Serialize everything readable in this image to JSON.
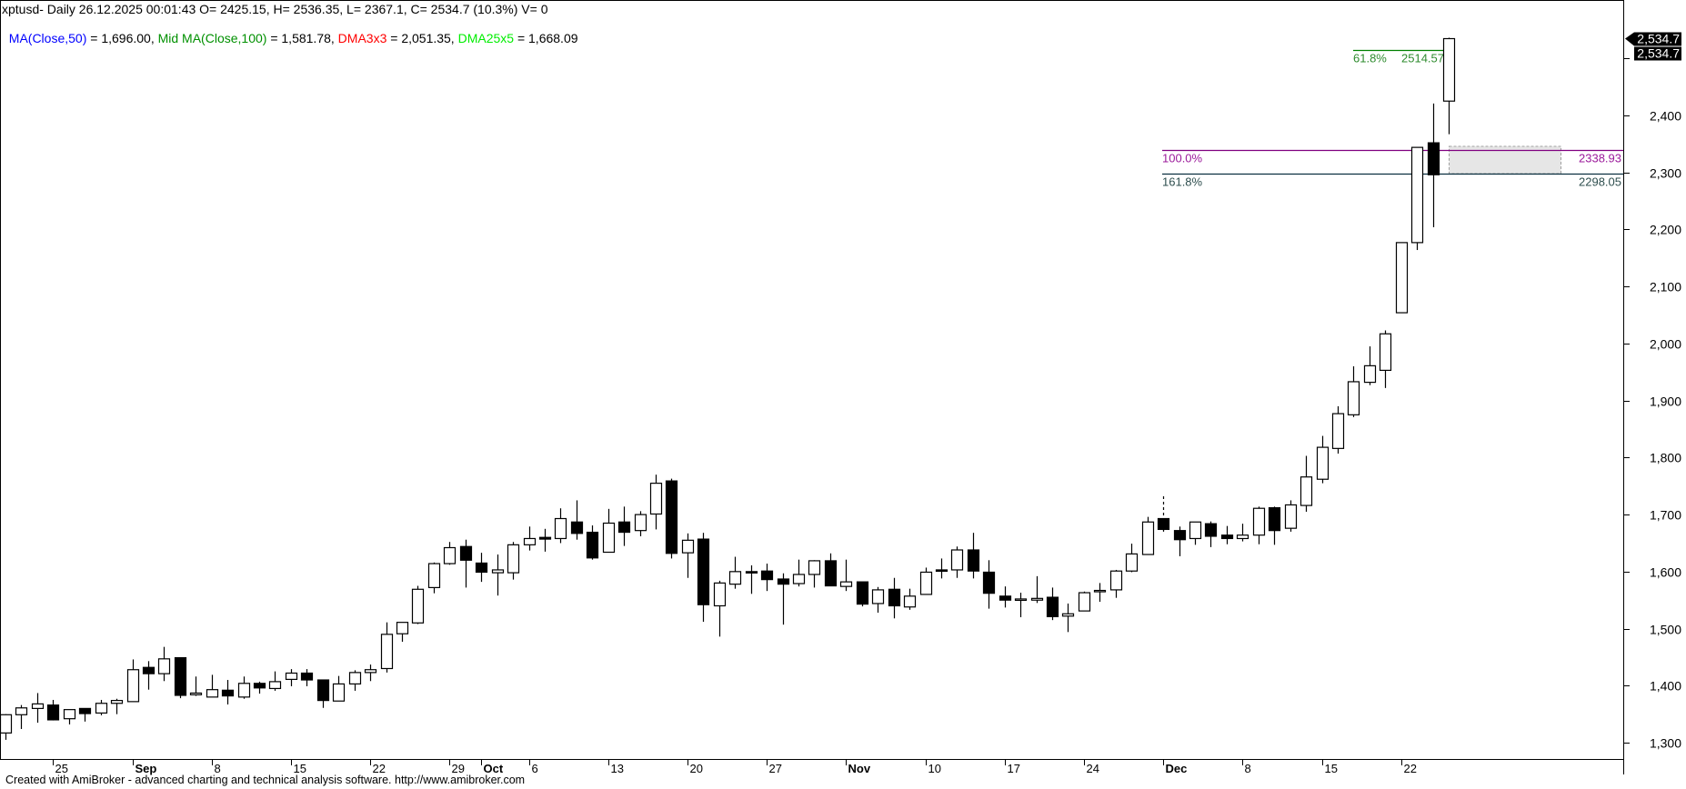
{
  "header": {
    "line1": "xptusd- Daily 26.12.2025 00:01:43 O= 2425.15, H= 2536.35, L= 2367.1, C= 2534.7 (10.3%) V= 0",
    "indicators": [
      {
        "name": "MA(Close,50)",
        "value": " = 1,696.00, ",
        "color": "#0000ff"
      },
      {
        "name": "Mid MA(Close,100)",
        "value": " = 1,581.78, ",
        "color": "#009000"
      },
      {
        "name": "DMA3x3",
        "value": " = 2,051.35, ",
        "color": "#ff0000"
      },
      {
        "name": "DMA25x5",
        "value": " = 1,668.09",
        "color": "#00ee00"
      }
    ]
  },
  "footer": "Created with AmiBroker - advanced charting and technical analysis software. http://www.amibroker.com",
  "chart_data": {
    "type": "candlestick",
    "symbol": "xptusd",
    "ylim": [
      1260,
      2560
    ],
    "y_ticks": [
      "1,300",
      "1,400",
      "1,500",
      "1,600",
      "1,700",
      "1,800",
      "1,900",
      "2,000",
      "2,100",
      "2,200",
      "2,300",
      "2,400"
    ],
    "y_tick_values": [
      1300,
      1400,
      1500,
      1600,
      1700,
      1800,
      1900,
      2000,
      2100,
      2200,
      2300,
      2400
    ],
    "last_price_labels": [
      "2,534.7",
      "2,534.7"
    ],
    "last_price": 2534.7,
    "x_ticks": [
      {
        "label": "25",
        "date": "2025-08-25",
        "bold": false
      },
      {
        "label": "Sep",
        "date": "2025-09-01",
        "bold": true
      },
      {
        "label": "8",
        "date": "2025-09-08",
        "bold": false
      },
      {
        "label": "15",
        "date": "2025-09-15",
        "bold": false
      },
      {
        "label": "22",
        "date": "2025-09-22",
        "bold": false
      },
      {
        "label": "29",
        "date": "2025-09-29",
        "bold": false
      },
      {
        "label": "Oct",
        "date": "2025-10-01",
        "bold": true
      },
      {
        "label": "6",
        "date": "2025-10-06",
        "bold": false
      },
      {
        "label": "13",
        "date": "2025-10-13",
        "bold": false
      },
      {
        "label": "20",
        "date": "2025-10-20",
        "bold": false
      },
      {
        "label": "27",
        "date": "2025-10-27",
        "bold": false
      },
      {
        "label": "Nov",
        "date": "2025-11-03",
        "bold": true
      },
      {
        "label": "10",
        "date": "2025-11-10",
        "bold": false
      },
      {
        "label": "17",
        "date": "2025-11-17",
        "bold": false
      },
      {
        "label": "24",
        "date": "2025-11-24",
        "bold": false
      },
      {
        "label": "Dec",
        "date": "2025-12-01",
        "bold": true
      },
      {
        "label": "8",
        "date": "2025-12-08",
        "bold": false
      },
      {
        "label": "15",
        "date": "2025-12-15",
        "bold": false
      },
      {
        "label": "22",
        "date": "2025-12-22",
        "bold": false
      }
    ],
    "fib_levels": [
      {
        "pct": "61.8%",
        "value_label": "2514.57",
        "value": 2514.57,
        "color": "#008000",
        "text_color": "#2e8b2e"
      },
      {
        "pct": "100.0%",
        "value_label": "2338.93",
        "value": 2338.93,
        "color": "#800080",
        "text_color": "#9b1b9b"
      },
      {
        "pct": "161.8%",
        "value_label": "2298.05",
        "value": 2298.05,
        "color": "#0b3040",
        "text_color": "#2f4f4f"
      }
    ],
    "candles_columns": [
      "date",
      "open",
      "high",
      "low",
      "close"
    ],
    "candles": [
      [
        "2025-08-20",
        1317,
        1350,
        1305,
        1349
      ],
      [
        "2025-08-21",
        1349,
        1366,
        1324,
        1361
      ],
      [
        "2025-08-22",
        1360,
        1387,
        1335,
        1368
      ],
      [
        "2025-08-25",
        1366,
        1375,
        1339,
        1340
      ],
      [
        "2025-08-26",
        1342,
        1358,
        1332,
        1358
      ],
      [
        "2025-08-27",
        1360,
        1360,
        1337,
        1351
      ],
      [
        "2025-08-28",
        1352,
        1375,
        1348,
        1369
      ],
      [
        "2025-08-29",
        1369,
        1377,
        1350,
        1374
      ],
      [
        "2025-09-01",
        1372,
        1446,
        1372,
        1428
      ],
      [
        "2025-09-02",
        1432,
        1443,
        1393,
        1421
      ],
      [
        "2025-09-03",
        1421,
        1468,
        1408,
        1447
      ],
      [
        "2025-09-04",
        1449,
        1449,
        1378,
        1383
      ],
      [
        "2025-09-05",
        1384,
        1416,
        1382,
        1387
      ],
      [
        "2025-09-08",
        1380,
        1419,
        1380,
        1393
      ],
      [
        "2025-09-09",
        1392,
        1410,
        1367,
        1382
      ],
      [
        "2025-09-10",
        1380,
        1416,
        1377,
        1404
      ],
      [
        "2025-09-11",
        1404,
        1407,
        1386,
        1396
      ],
      [
        "2025-09-12",
        1395,
        1425,
        1391,
        1407
      ],
      [
        "2025-09-15",
        1411,
        1429,
        1399,
        1422
      ],
      [
        "2025-09-16",
        1422,
        1429,
        1399,
        1410
      ],
      [
        "2025-09-17",
        1410,
        1410,
        1361,
        1374
      ],
      [
        "2025-09-18",
        1373,
        1417,
        1373,
        1403
      ],
      [
        "2025-09-19",
        1403,
        1427,
        1391,
        1423
      ],
      [
        "2025-09-22",
        1423,
        1437,
        1408,
        1428
      ],
      [
        "2025-09-23",
        1430,
        1511,
        1423,
        1490
      ],
      [
        "2025-09-24",
        1491,
        1511,
        1477,
        1511
      ],
      [
        "2025-09-25",
        1510,
        1575,
        1508,
        1569
      ],
      [
        "2025-09-26",
        1572,
        1616,
        1562,
        1614
      ],
      [
        "2025-09-29",
        1614,
        1652,
        1612,
        1642
      ],
      [
        "2025-09-30",
        1644,
        1656,
        1572,
        1620
      ],
      [
        "2025-10-01",
        1615,
        1633,
        1582,
        1599
      ],
      [
        "2025-10-02",
        1598,
        1630,
        1558,
        1603
      ],
      [
        "2025-10-03",
        1598,
        1652,
        1586,
        1647
      ],
      [
        "2025-10-06",
        1647,
        1679,
        1637,
        1658
      ],
      [
        "2025-10-07",
        1660,
        1675,
        1635,
        1657
      ],
      [
        "2025-10-08",
        1658,
        1711,
        1650,
        1693
      ],
      [
        "2025-10-09",
        1687,
        1725,
        1656,
        1667
      ],
      [
        "2025-10-10",
        1669,
        1681,
        1621,
        1624
      ],
      [
        "2025-10-13",
        1634,
        1710,
        1634,
        1685
      ],
      [
        "2025-10-14",
        1687,
        1714,
        1645,
        1669
      ],
      [
        "2025-10-15",
        1672,
        1706,
        1662,
        1700
      ],
      [
        "2025-10-16",
        1701,
        1770,
        1674,
        1755
      ],
      [
        "2025-10-17",
        1759,
        1763,
        1623,
        1632
      ],
      [
        "2025-10-20",
        1633,
        1667,
        1589,
        1655
      ],
      [
        "2025-10-21",
        1657,
        1668,
        1512,
        1542
      ],
      [
        "2025-10-22",
        1540,
        1584,
        1486,
        1580
      ],
      [
        "2025-10-23",
        1578,
        1626,
        1570,
        1600
      ],
      [
        "2025-10-24",
        1600,
        1611,
        1561,
        1598
      ],
      [
        "2025-10-27",
        1601,
        1614,
        1566,
        1586
      ],
      [
        "2025-10-28",
        1587,
        1597,
        1507,
        1578
      ],
      [
        "2025-10-29",
        1579,
        1621,
        1574,
        1595
      ],
      [
        "2025-10-30",
        1595,
        1620,
        1572,
        1619
      ],
      [
        "2025-10-31",
        1619,
        1632,
        1575,
        1575
      ],
      [
        "2025-11-03",
        1574,
        1621,
        1566,
        1582
      ],
      [
        "2025-11-04",
        1582,
        1582,
        1539,
        1543
      ],
      [
        "2025-11-05",
        1544,
        1573,
        1528,
        1568
      ],
      [
        "2025-11-06",
        1569,
        1589,
        1518,
        1540
      ],
      [
        "2025-11-07",
        1538,
        1570,
        1533,
        1557
      ],
      [
        "2025-11-10",
        1560,
        1607,
        1560,
        1599
      ],
      [
        "2025-11-11",
        1603,
        1623,
        1588,
        1601
      ],
      [
        "2025-11-12",
        1603,
        1644,
        1589,
        1638
      ],
      [
        "2025-11-13",
        1638,
        1668,
        1588,
        1601
      ],
      [
        "2025-11-14",
        1599,
        1620,
        1535,
        1562
      ],
      [
        "2025-11-17",
        1557,
        1574,
        1537,
        1550
      ],
      [
        "2025-11-18",
        1552,
        1563,
        1520,
        1552
      ],
      [
        "2025-11-19",
        1550,
        1592,
        1545,
        1553
      ],
      [
        "2025-11-20",
        1555,
        1572,
        1515,
        1521
      ],
      [
        "2025-11-21",
        1522,
        1544,
        1494,
        1526
      ],
      [
        "2025-11-24",
        1531,
        1565,
        1531,
        1563
      ],
      [
        "2025-11-25",
        1565,
        1580,
        1547,
        1567
      ],
      [
        "2025-11-26",
        1568,
        1603,
        1554,
        1601
      ],
      [
        "2025-11-27",
        1601,
        1649,
        1599,
        1631
      ],
      [
        "2025-11-28",
        1630,
        1696,
        1630,
        1687
      ],
      [
        "2025-12-01",
        1693,
        1693,
        1670,
        1674
      ],
      [
        "2025-12-02",
        1672,
        1679,
        1627,
        1656
      ],
      [
        "2025-12-03",
        1658,
        1687,
        1647,
        1687
      ],
      [
        "2025-12-04",
        1684,
        1688,
        1643,
        1662
      ],
      [
        "2025-12-05",
        1664,
        1680,
        1648,
        1658
      ],
      [
        "2025-12-08",
        1658,
        1684,
        1653,
        1664
      ],
      [
        "2025-12-09",
        1664,
        1714,
        1648,
        1711
      ],
      [
        "2025-12-10",
        1712,
        1714,
        1647,
        1672
      ],
      [
        "2025-12-11",
        1676,
        1725,
        1670,
        1717
      ],
      [
        "2025-12-12",
        1716,
        1803,
        1705,
        1766
      ],
      [
        "2025-12-15",
        1762,
        1838,
        1755,
        1818
      ],
      [
        "2025-12-16",
        1816,
        1890,
        1807,
        1877
      ],
      [
        "2025-12-17",
        1875,
        1960,
        1871,
        1933
      ],
      [
        "2025-12-18",
        1932,
        1995,
        1927,
        1961
      ],
      [
        "2025-12-19",
        1953,
        2023,
        1922,
        2017
      ],
      [
        "2025-12-22",
        2054,
        2177,
        2054,
        2177
      ],
      [
        "2025-12-23",
        2177,
        2344,
        2164,
        2344
      ],
      [
        "2025-12-24",
        2352,
        2421,
        2204,
        2296
      ],
      [
        "2025-12-26",
        2425.15,
        2536.35,
        2367.1,
        2534.7
      ]
    ],
    "colors": {
      "up_fill": "#ffffff",
      "down_fill": "#000000",
      "outline": "#000000",
      "zone_fill": "#e6e6e6",
      "zone_border": "#a0a0a0"
    }
  }
}
